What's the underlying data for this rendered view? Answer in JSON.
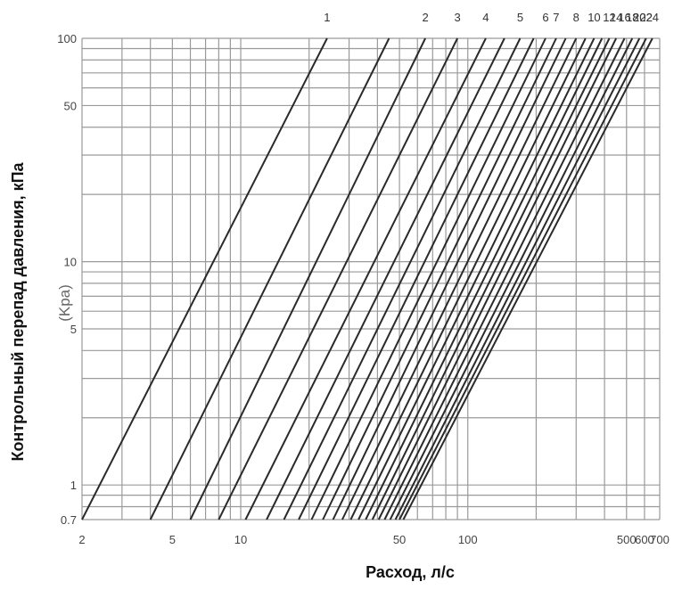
{
  "chart_data": {
    "type": "line",
    "xlabel": "Расход, л/с",
    "ylabel": "Контрольный перепад давления, кПа",
    "ylabel_unit": "(Kpa)",
    "x_scale": "log",
    "y_scale": "log",
    "xlim": [
      2,
      700
    ],
    "ylim": [
      0.7,
      100
    ],
    "grid": true,
    "x_ticks": [
      2,
      5,
      10,
      50,
      100,
      500,
      600,
      700
    ],
    "x_tick_labels": [
      "2",
      "5",
      "10",
      "50",
      "100",
      "500",
      "600",
      "700"
    ],
    "x_gridlines": [
      2,
      3,
      4,
      5,
      6,
      7,
      8,
      9,
      10,
      20,
      30,
      40,
      50,
      60,
      70,
      80,
      90,
      100,
      200,
      300,
      400,
      500,
      600,
      700
    ],
    "y_ticks": [
      0.7,
      1,
      5,
      10,
      50,
      100
    ],
    "y_tick_labels": [
      "0.7",
      "1",
      "5",
      "10",
      "50",
      "100"
    ],
    "y_gridlines": [
      0.7,
      0.8,
      0.9,
      1,
      2,
      3,
      4,
      5,
      6,
      7,
      8,
      9,
      10,
      20,
      30,
      40,
      50,
      60,
      70,
      80,
      90,
      100
    ],
    "series": [
      {
        "name": "1",
        "x": [
          2.0,
          24.0
        ],
        "y": [
          0.7,
          100
        ]
      },
      {
        "name": "",
        "x": [
          4.0,
          45.0
        ],
        "y": [
          0.7,
          100
        ]
      },
      {
        "name": "2",
        "x": [
          6.0,
          65.0
        ],
        "y": [
          0.7,
          100
        ]
      },
      {
        "name": "3",
        "x": [
          8.0,
          90.0
        ],
        "y": [
          0.7,
          100
        ]
      },
      {
        "name": "4",
        "x": [
          10.5,
          120.0
        ],
        "y": [
          0.7,
          100
        ]
      },
      {
        "name": "",
        "x": [
          13.0,
          145.0
        ],
        "y": [
          0.7,
          100
        ]
      },
      {
        "name": "5",
        "x": [
          15.5,
          170.0
        ],
        "y": [
          0.7,
          100
        ]
      },
      {
        "name": "",
        "x": [
          18.0,
          195.0
        ],
        "y": [
          0.7,
          100
        ]
      },
      {
        "name": "6",
        "x": [
          20.5,
          220.0
        ],
        "y": [
          0.7,
          100
        ]
      },
      {
        "name": "7",
        "x": [
          23.0,
          245.0
        ],
        "y": [
          0.7,
          100
        ]
      },
      {
        "name": "",
        "x": [
          25.5,
          270.0
        ],
        "y": [
          0.7,
          100
        ]
      },
      {
        "name": "8",
        "x": [
          28.0,
          300.0
        ],
        "y": [
          0.7,
          100
        ]
      },
      {
        "name": "",
        "x": [
          30.5,
          330.0
        ],
        "y": [
          0.7,
          100
        ]
      },
      {
        "name": "10",
        "x": [
          33.0,
          360.0
        ],
        "y": [
          0.7,
          100
        ]
      },
      {
        "name": "",
        "x": [
          35.5,
          390.0
        ],
        "y": [
          0.7,
          100
        ]
      },
      {
        "name": "12",
        "x": [
          38.0,
          420.0
        ],
        "y": [
          0.7,
          100
        ]
      },
      {
        "name": "14",
        "x": [
          40.5,
          450.0
        ],
        "y": [
          0.7,
          100
        ]
      },
      {
        "name": "16",
        "x": [
          43.0,
          490.0
        ],
        "y": [
          0.7,
          100
        ]
      },
      {
        "name": "18",
        "x": [
          45.5,
          530.0
        ],
        "y": [
          0.7,
          100
        ]
      },
      {
        "name": "20",
        "x": [
          48.0,
          570.0
        ],
        "y": [
          0.7,
          100
        ]
      },
      {
        "name": "22",
        "x": [
          50.0,
          610.0
        ],
        "y": [
          0.7,
          100
        ]
      },
      {
        "name": "24",
        "x": [
          52.0,
          650.0
        ],
        "y": [
          0.7,
          100
        ]
      }
    ]
  }
}
